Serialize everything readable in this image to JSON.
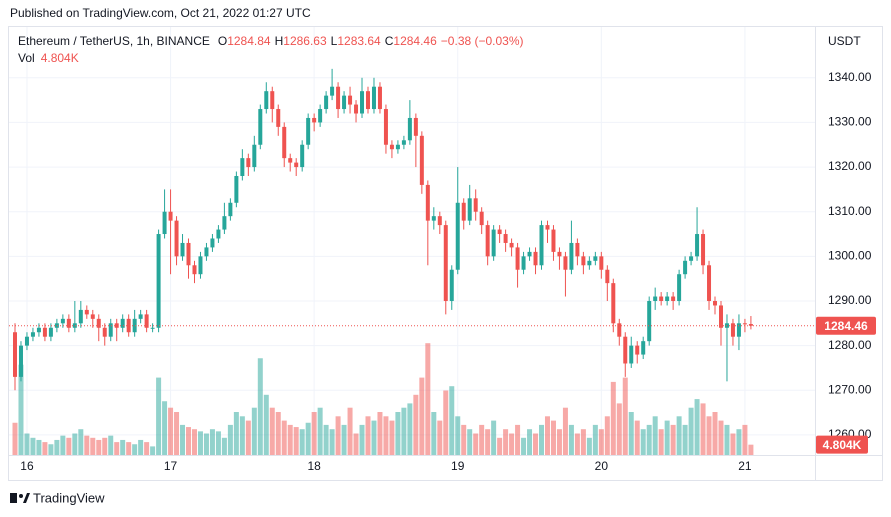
{
  "header": {
    "published": "Published on TradingView.com, Oct 21, 2022 01:27 UTC"
  },
  "chart_data": {
    "type": "candlestick",
    "title": "Ethereum / TetherUS, 1h, BINANCE",
    "ohlc_labels": [
      "O",
      "H",
      "L",
      "C"
    ],
    "change": "−0.38 (−0.03%)",
    "volume_name": "Vol",
    "volume_last_label": "4.804K",
    "y_axis_label": "USDT",
    "open": [
      1283,
      1273,
      1280,
      1282,
      1283,
      1284,
      1282,
      1284,
      1285,
      1286,
      1284,
      1285,
      1288,
      1287,
      1286,
      1284,
      1282,
      1285,
      1284,
      1286,
      1283,
      1286,
      1287,
      1284,
      1284,
      1305,
      1310,
      1308,
      1300,
      1303,
      1298,
      1296,
      1300,
      1302,
      1304,
      1306,
      1309,
      1312,
      1318,
      1322,
      1320,
      1325,
      1333,
      1337,
      1333,
      1329,
      1322,
      1321,
      1320,
      1325,
      1331,
      1330,
      1333,
      1336,
      1338,
      1333,
      1336,
      1334,
      1332,
      1337,
      1333,
      1338,
      1333,
      1325,
      1324,
      1325,
      1326,
      1331,
      1327,
      1316,
      1308,
      1309,
      1307,
      1290,
      1297,
      1312,
      1308,
      1313,
      1310,
      1307,
      1300,
      1306,
      1305,
      1303,
      1302,
      1297,
      1300,
      1301,
      1298,
      1307,
      1306,
      1301,
      1300,
      1297,
      1303,
      1300,
      1298,
      1299,
      1300,
      1297,
      1294,
      1285,
      1282,
      1276,
      1280,
      1278,
      1281,
      1290,
      1291,
      1290,
      1291,
      1290,
      1296,
      1299,
      1300,
      1305,
      1298,
      1290,
      1289,
      1284,
      1285,
      1282,
      1285,
      1284.84
    ],
    "high": [
      1285,
      1281,
      1283,
      1284,
      1285,
      1285,
      1285,
      1286,
      1287,
      1287,
      1290,
      1290,
      1289,
      1288,
      1287,
      1285,
      1286,
      1286,
      1287,
      1287,
      1288,
      1288,
      1288,
      1285,
      1306,
      1315,
      1315,
      1309,
      1305,
      1304,
      1299,
      1301,
      1303,
      1305,
      1307,
      1312,
      1313,
      1319,
      1324,
      1323,
      1327,
      1334,
      1339,
      1338,
      1334,
      1330,
      1323,
      1322,
      1326,
      1332,
      1332,
      1334,
      1337,
      1342,
      1339,
      1337,
      1338,
      1335,
      1340,
      1338,
      1340,
      1339,
      1334,
      1326,
      1326,
      1327,
      1335,
      1332,
      1328,
      1317,
      1311,
      1310,
      1308,
      1298,
      1320,
      1313,
      1316,
      1315,
      1311,
      1308,
      1307,
      1307,
      1306,
      1304,
      1303,
      1301,
      1302,
      1302,
      1308,
      1308,
      1307,
      1302,
      1301,
      1308,
      1304,
      1301,
      1300,
      1301,
      1301,
      1298,
      1295,
      1286,
      1283,
      1282,
      1281,
      1282,
      1291,
      1293,
      1292,
      1292,
      1292,
      1297,
      1300,
      1301,
      1311,
      1306,
      1299,
      1291,
      1290,
      1287,
      1286,
      1287,
      1286,
      1286.63
    ],
    "low": [
      1270,
      1272,
      1279,
      1281,
      1282,
      1281,
      1281,
      1283,
      1284,
      1283,
      1283,
      1284,
      1286,
      1284,
      1281,
      1280,
      1281,
      1281,
      1283,
      1282,
      1282,
      1285,
      1283,
      1283,
      1283,
      1304,
      1296,
      1298,
      1299,
      1295,
      1294,
      1295,
      1299,
      1301,
      1303,
      1305,
      1308,
      1311,
      1317,
      1318,
      1319,
      1324,
      1332,
      1330,
      1327,
      1320,
      1319,
      1318,
      1319,
      1324,
      1328,
      1329,
      1332,
      1335,
      1331,
      1332,
      1332,
      1330,
      1331,
      1332,
      1332,
      1332,
      1323,
      1322,
      1323,
      1324,
      1325,
      1320,
      1314,
      1298,
      1306,
      1305,
      1287,
      1288,
      1296,
      1306,
      1307,
      1308,
      1305,
      1298,
      1299,
      1303,
      1301,
      1300,
      1293,
      1296,
      1299,
      1296,
      1297,
      1303,
      1299,
      1297,
      1291,
      1296,
      1298,
      1296,
      1297,
      1298,
      1295,
      1290,
      1283,
      1280,
      1273,
      1275,
      1276,
      1277,
      1280,
      1288,
      1289,
      1289,
      1288,
      1289,
      1295,
      1298,
      1299,
      1296,
      1288,
      1287,
      1280,
      1272,
      1280,
      1279,
      1283,
      1283.64
    ],
    "close": [
      1273,
      1280,
      1282,
      1283,
      1284,
      1282,
      1284,
      1285,
      1286,
      1284,
      1285,
      1288,
      1287,
      1286,
      1284,
      1282,
      1285,
      1284,
      1286,
      1283,
      1286,
      1287,
      1284,
      1284,
      1305,
      1310,
      1308,
      1300,
      1303,
      1298,
      1296,
      1300,
      1302,
      1304,
      1306,
      1309,
      1312,
      1318,
      1322,
      1320,
      1325,
      1333,
      1337,
      1333,
      1329,
      1322,
      1321,
      1320,
      1325,
      1331,
      1330,
      1333,
      1336,
      1338,
      1333,
      1336,
      1334,
      1332,
      1337,
      1333,
      1338,
      1333,
      1325,
      1324,
      1325,
      1326,
      1331,
      1327,
      1316,
      1308,
      1309,
      1307,
      1290,
      1297,
      1312,
      1308,
      1313,
      1310,
      1307,
      1300,
      1306,
      1305,
      1303,
      1302,
      1297,
      1300,
      1301,
      1298,
      1307,
      1306,
      1301,
      1300,
      1297,
      1303,
      1300,
      1298,
      1299,
      1300,
      1297,
      1294,
      1285,
      1282,
      1276,
      1280,
      1278,
      1281,
      1290,
      1291,
      1290,
      1291,
      1290,
      1296,
      1299,
      1300,
      1305,
      1298,
      1290,
      1289,
      1284,
      1285,
      1282,
      1285,
      1284.84,
      1284.46
    ],
    "volume": [
      15,
      42,
      10,
      8,
      7,
      6,
      5,
      7,
      9,
      8,
      10,
      12,
      9,
      8,
      7,
      8,
      9,
      6,
      7,
      6,
      5,
      7,
      6,
      4,
      36,
      25,
      22,
      20,
      14,
      13,
      12,
      11,
      10,
      12,
      11,
      8,
      14,
      20,
      18,
      16,
      22,
      45,
      28,
      22,
      20,
      16,
      14,
      13,
      12,
      15,
      20,
      22,
      14,
      12,
      18,
      14,
      22,
      10,
      14,
      18,
      16,
      20,
      18,
      16,
      20,
      22,
      24,
      28,
      36,
      52,
      20,
      16,
      30,
      32,
      18,
      14,
      12,
      10,
      14,
      12,
      16,
      8,
      12,
      10,
      14,
      8,
      12,
      10,
      14,
      18,
      16,
      12,
      22,
      14,
      10,
      12,
      8,
      14,
      12,
      18,
      34,
      24,
      36,
      20,
      16,
      12,
      14,
      18,
      12,
      16,
      14,
      18,
      14,
      22,
      26,
      24,
      18,
      20,
      16,
      14,
      10,
      12,
      14,
      4.804
    ],
    "ylim": [
      1255.5,
      1351.6
    ],
    "yticks": [
      {
        "value": 1260,
        "label": "1260.00"
      },
      {
        "value": 1270,
        "label": "1270.00"
      },
      {
        "value": 1280,
        "label": "1280.00"
      },
      {
        "value": 1290,
        "label": "1290.00"
      },
      {
        "value": 1300,
        "label": "1300.00"
      },
      {
        "value": 1310,
        "label": "1310.00"
      },
      {
        "value": 1320,
        "label": "1320.00"
      },
      {
        "value": 1330,
        "label": "1330.00"
      },
      {
        "value": 1340,
        "label": "1340.00"
      }
    ],
    "xticks": [
      {
        "value": 2,
        "label": "16"
      },
      {
        "value": 26,
        "label": "17"
      },
      {
        "value": 50,
        "label": "18"
      },
      {
        "value": 74,
        "label": "19"
      },
      {
        "value": 98,
        "label": "20"
      },
      {
        "value": 122,
        "label": "21"
      }
    ],
    "volume_lim": [
      0,
      100
    ],
    "up_color": "#26a69a",
    "down_color": "#ef5350",
    "grid": true
  },
  "footer": {
    "brand": "TradingView"
  }
}
